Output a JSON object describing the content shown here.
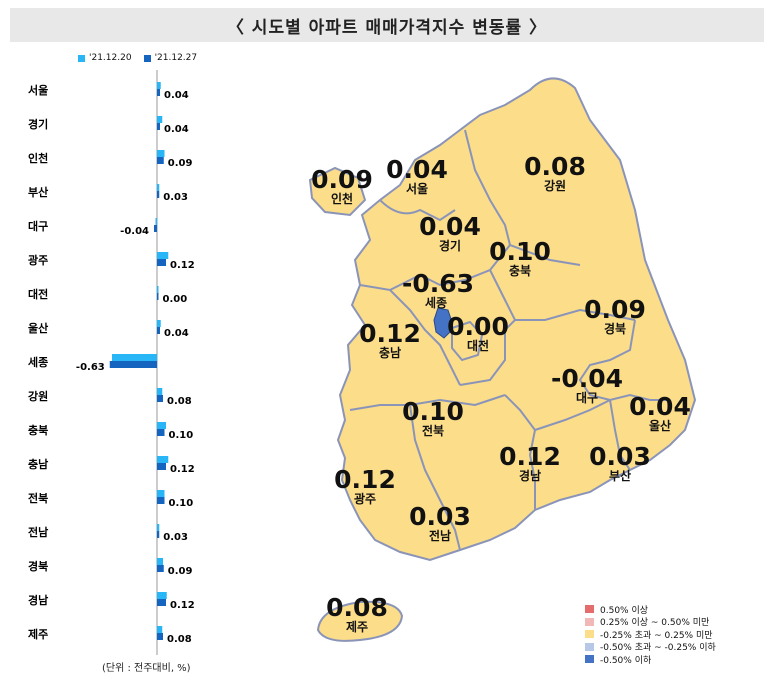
{
  "title": "〈  시도별 아파트  매매가격지수 변동률  〉",
  "unit_note": "(단위 : 전주대비, %)",
  "chart_data": {
    "type": "bar",
    "orientation": "horizontal",
    "categories": [
      "서울",
      "경기",
      "인천",
      "부산",
      "대구",
      "광주",
      "대전",
      "울산",
      "세종",
      "강원",
      "충북",
      "충남",
      "전북",
      "전남",
      "경북",
      "경남",
      "제주"
    ],
    "series": [
      {
        "name": "'21.12.20",
        "color": "#29b6f6",
        "values": [
          0.05,
          0.07,
          0.1,
          0.03,
          -0.02,
          0.15,
          0.02,
          0.05,
          -0.6,
          0.07,
          0.12,
          0.15,
          0.1,
          0.03,
          0.08,
          0.13,
          0.07
        ]
      },
      {
        "name": "'21.12.27",
        "color": "#1565c0",
        "values": [
          0.04,
          0.04,
          0.09,
          0.03,
          -0.04,
          0.12,
          0.0,
          0.04,
          -0.63,
          0.08,
          0.1,
          0.12,
          0.1,
          0.03,
          0.09,
          0.12,
          0.08
        ]
      }
    ],
    "value_labels": [
      "0.04",
      "0.04",
      "0.09",
      "0.03",
      "-0.04",
      "0.12",
      "0.00",
      "0.04",
      "-0.63",
      "0.08",
      "0.10",
      "0.12",
      "0.10",
      "0.03",
      "0.09",
      "0.12",
      "0.08"
    ]
  },
  "map": {
    "regions": [
      {
        "name": "인천",
        "value": "0.09"
      },
      {
        "name": "서울",
        "value": "0.04"
      },
      {
        "name": "강원",
        "value": "0.08"
      },
      {
        "name": "경기",
        "value": "0.04"
      },
      {
        "name": "충북",
        "value": "0.10"
      },
      {
        "name": "세종",
        "value": "-0.63"
      },
      {
        "name": "경북",
        "value": "0.09"
      },
      {
        "name": "충남",
        "value": "0.12"
      },
      {
        "name": "대전",
        "value": "0.00"
      },
      {
        "name": "대구",
        "value": "-0.04"
      },
      {
        "name": "울산",
        "value": "0.04"
      },
      {
        "name": "전북",
        "value": "0.10"
      },
      {
        "name": "경남",
        "value": "0.12"
      },
      {
        "name": "부산",
        "value": "0.03"
      },
      {
        "name": "광주",
        "value": "0.12"
      },
      {
        "name": "전남",
        "value": "0.03"
      },
      {
        "name": "제주",
        "value": "0.08"
      }
    ],
    "fill_color": "#fcdd8a",
    "sejong_color": "#4472c4",
    "border_color": "#8a94b8"
  },
  "color_legend": [
    {
      "label": "0.50% 이상",
      "color": "#e46c6c"
    },
    {
      "label": "0.25% 이상 ~ 0.50% 미만",
      "color": "#f2b8b8"
    },
    {
      "label": "-0.25% 초과 ~ 0.25% 미만",
      "color": "#fcdd8a"
    },
    {
      "label": "-0.50% 초과 ~ -0.25% 이하",
      "color": "#b7c7e6"
    },
    {
      "label": "-0.50% 이하",
      "color": "#4472c4"
    }
  ]
}
